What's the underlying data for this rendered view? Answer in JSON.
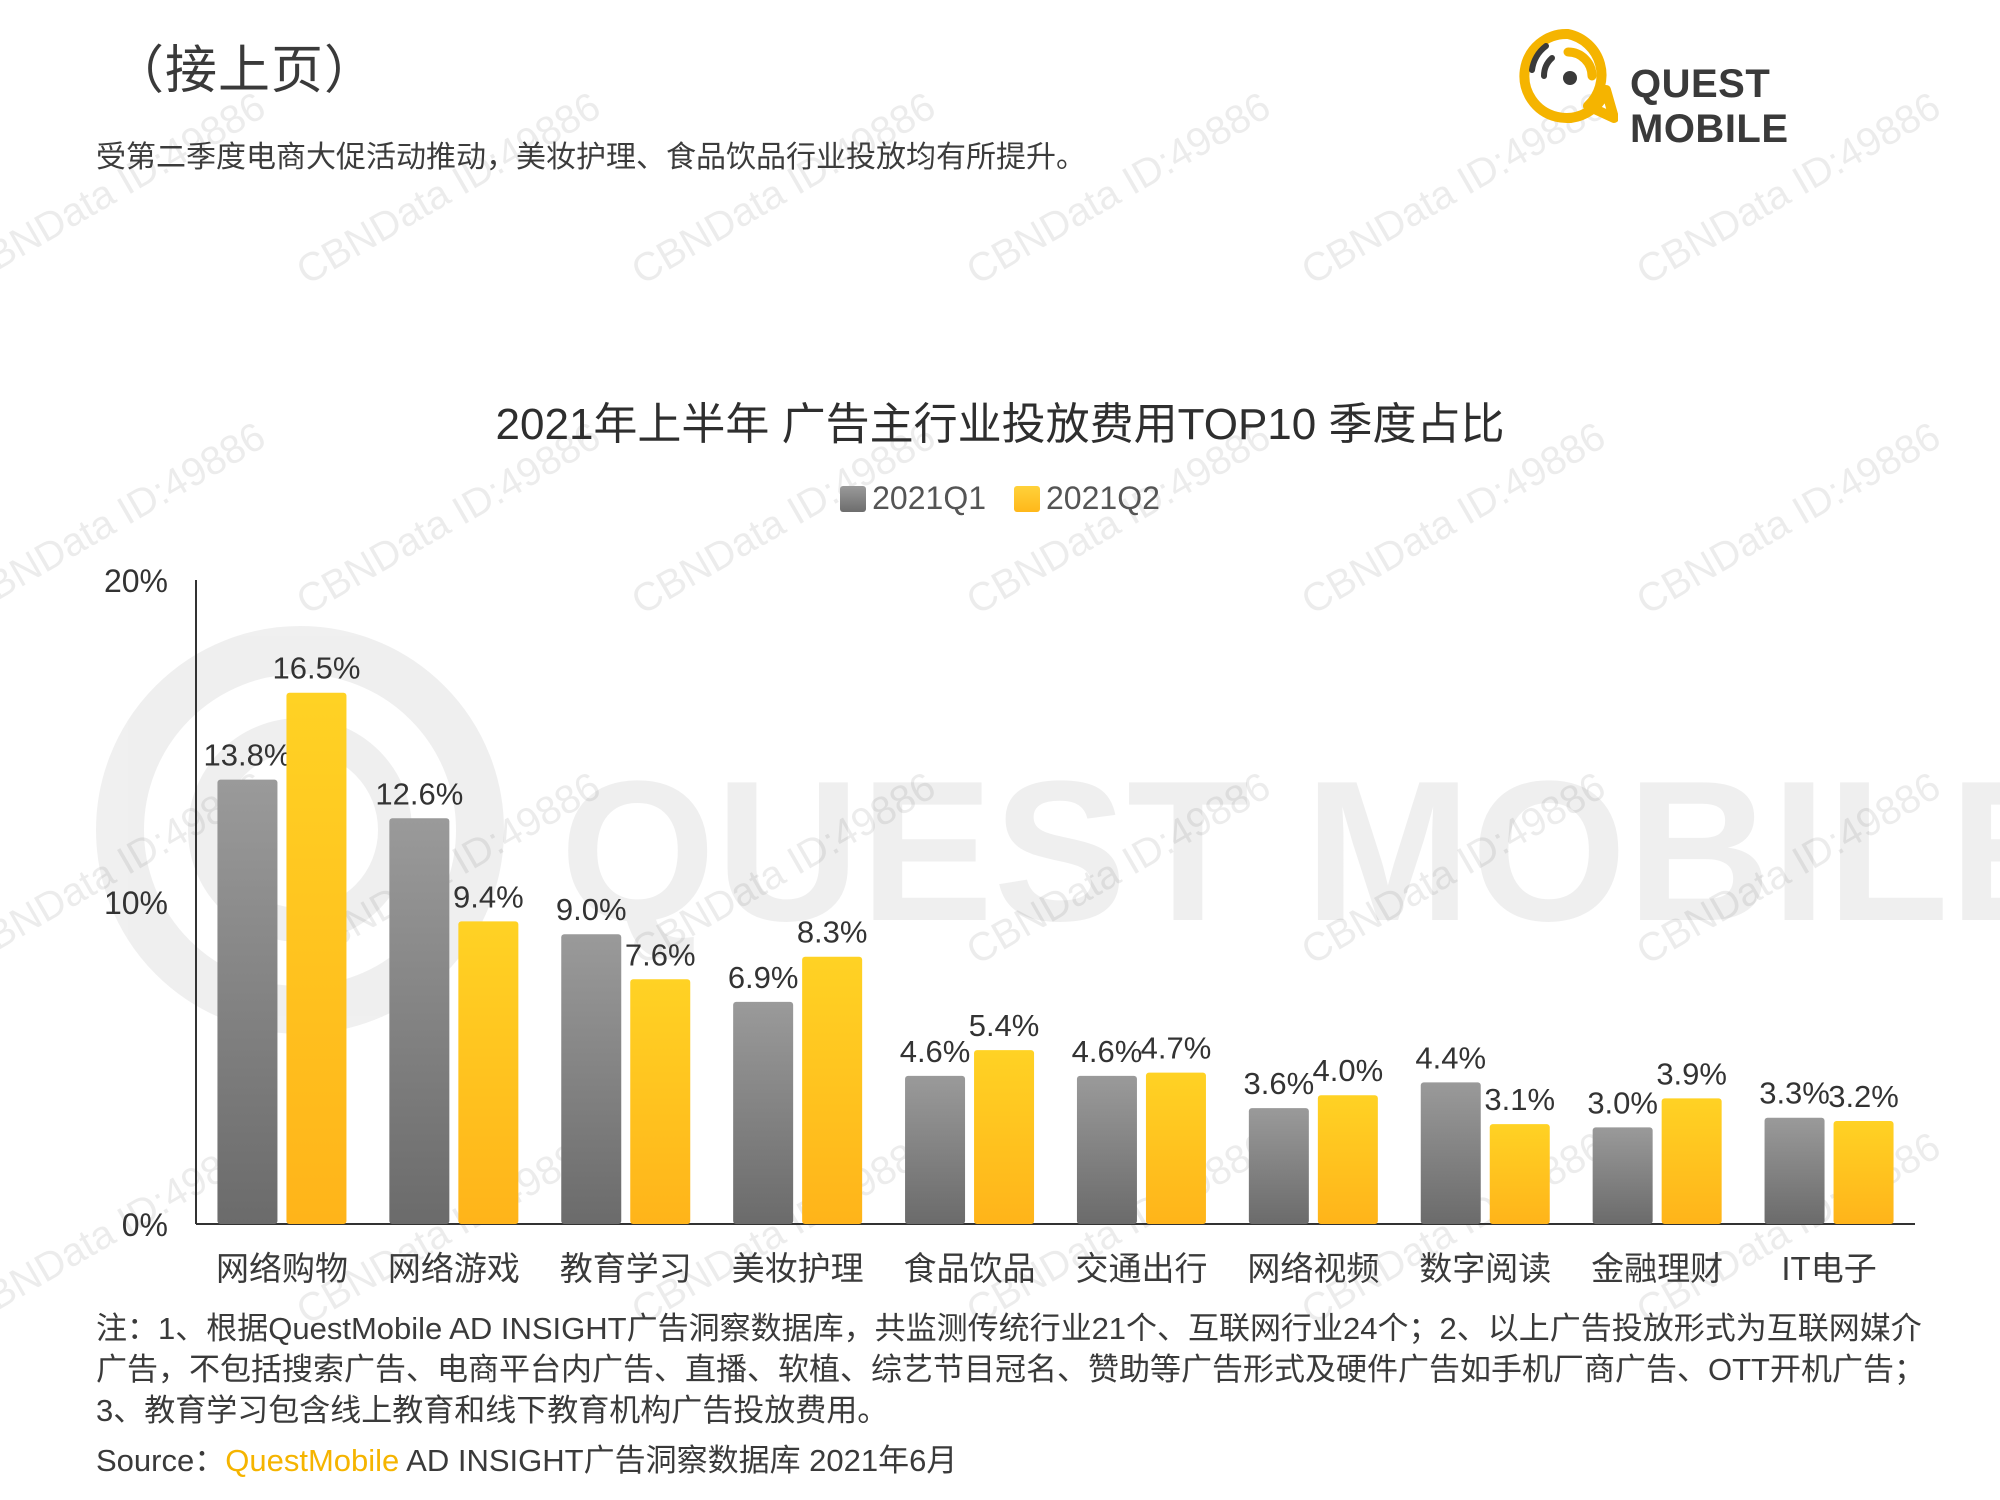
{
  "header": {
    "heading": "（接上页）",
    "subtitle": "受第二季度电商大促活动推动，美妆护理、食品饮品行业投放均有所提升。"
  },
  "logo": {
    "text": "QUEST MOBILE",
    "watermark_text": "QUEST MOBILE",
    "repeat_watermark": "CBNData ID:49886"
  },
  "colors": {
    "q1": "#8a8a8a",
    "q2": "#ffc21a",
    "brand": "#f5b400",
    "axis": "#333333"
  },
  "chart_data": {
    "type": "bar",
    "title": "2021年上半年 广告主行业投放费用TOP10 季度占比",
    "categories": [
      "网络购物",
      "网络游戏",
      "教育学习",
      "美妆护理",
      "食品饮品",
      "交通出行",
      "网络视频",
      "数字阅读",
      "金融理财",
      "IT电子"
    ],
    "series": [
      {
        "name": "2021Q1",
        "values": [
          13.8,
          12.6,
          9.0,
          6.9,
          4.6,
          4.6,
          3.6,
          4.4,
          3.0,
          3.3
        ],
        "labels": [
          "13.8%",
          "12.6%",
          "9.0%",
          "6.9%",
          "4.6%",
          "4.6%",
          "3.6%",
          "4.4%",
          "3.0%",
          "3.3%"
        ]
      },
      {
        "name": "2021Q2",
        "values": [
          16.5,
          9.4,
          7.6,
          8.3,
          5.4,
          4.7,
          4.0,
          3.1,
          3.9,
          3.2
        ],
        "labels": [
          "16.5%",
          "9.4%",
          "7.6%",
          "8.3%",
          "5.4%",
          "4.7%",
          "4.0%",
          "3.1%",
          "3.9%",
          "3.2%"
        ]
      }
    ],
    "yticks": [
      0,
      10,
      20
    ],
    "ytick_labels": [
      "0%",
      "10%",
      "20%"
    ],
    "ylim": [
      0,
      20
    ],
    "legend_position": "top-center",
    "grid": false
  },
  "footer": {
    "notes": "注：1、根据QuestMobile AD INSIGHT广告洞察数据库，共监测传统行业21个、互联网行业24个；2、以上广告投放形式为互联网媒介广告，不包括搜索广告、电商平台内广告、直播、软植、综艺节目冠名、赞助等广告形式及硬件广告如手机厂商广告、OTT开机广告；3、教育学习包含线上教育和线下教育机构广告投放费用。",
    "source_label": "Source：",
    "source_brand": "QuestMobile",
    "source_rest": " AD INSIGHT广告洞察数据库 2021年6月"
  }
}
